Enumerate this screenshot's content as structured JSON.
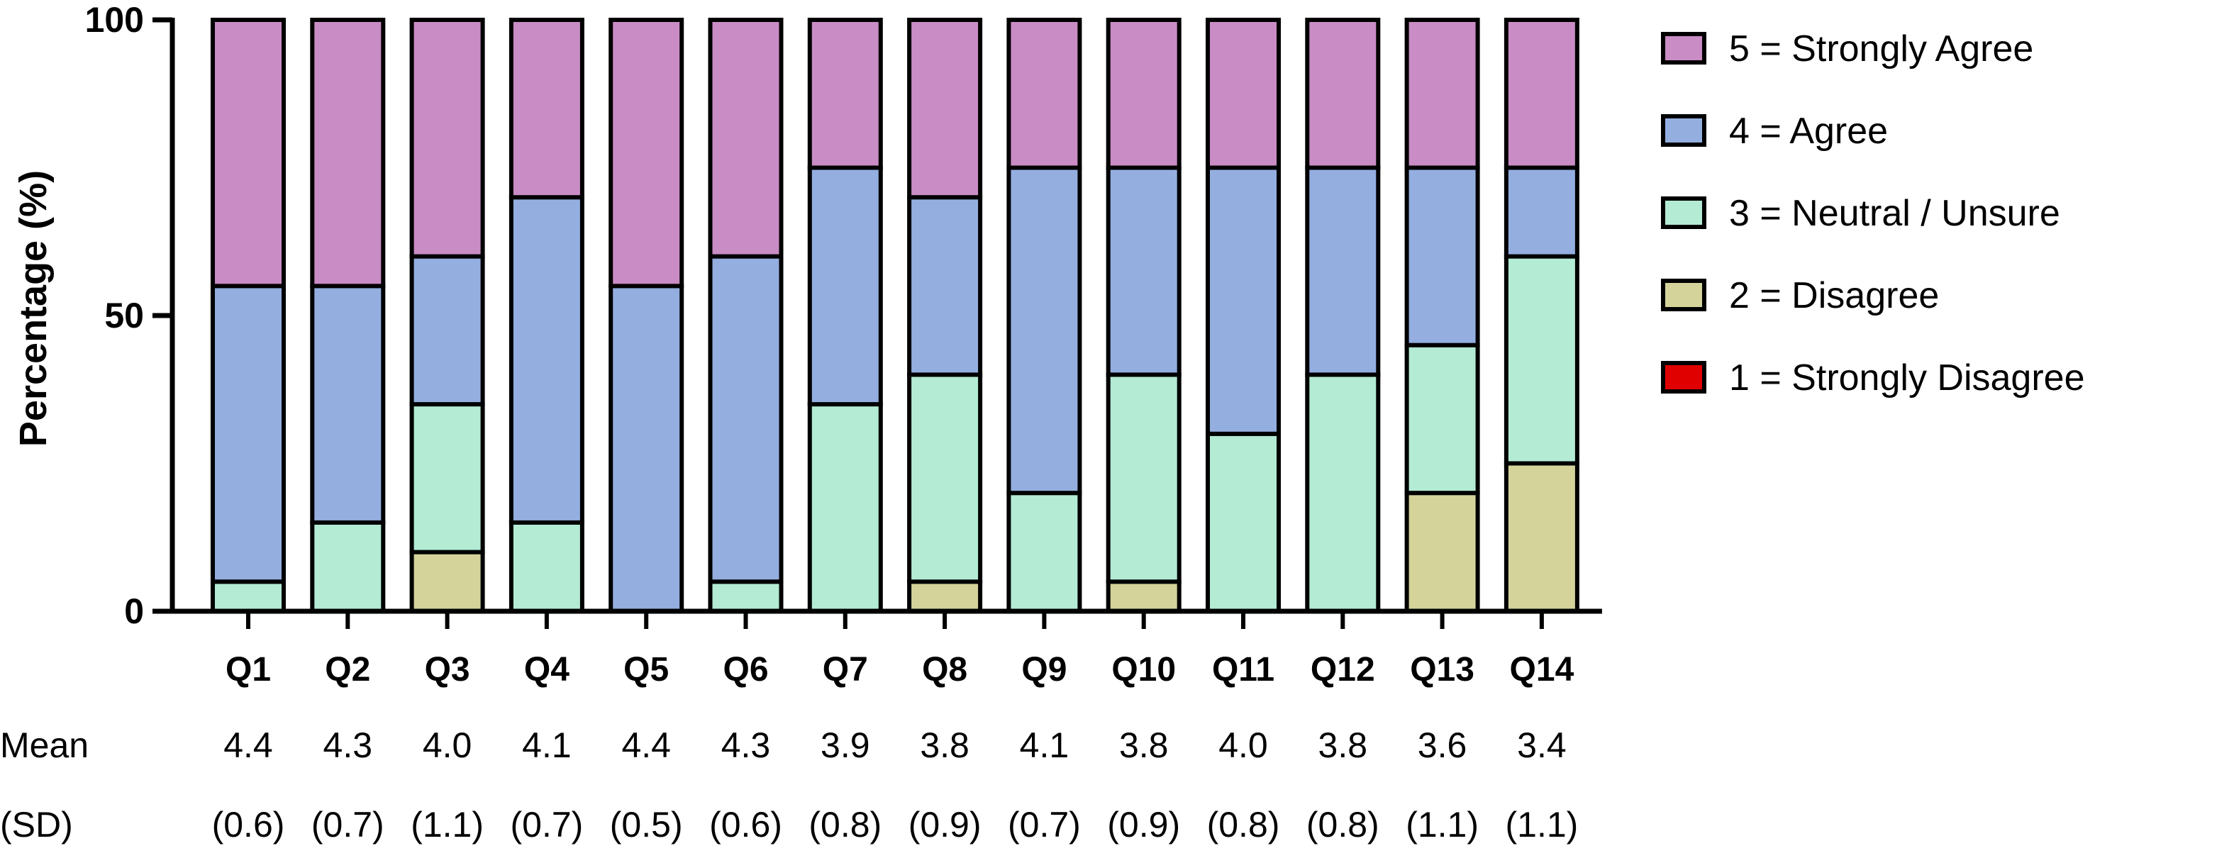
{
  "chart_data": {
    "type": "bar",
    "stacked": true,
    "ylabel": "Percentage (%)",
    "ylim": [
      0,
      100
    ],
    "yticks": [
      0,
      50,
      100
    ],
    "categories": [
      "Q1",
      "Q2",
      "Q3",
      "Q4",
      "Q5",
      "Q6",
      "Q7",
      "Q8",
      "Q9",
      "Q10",
      "Q11",
      "Q12",
      "Q13",
      "Q14"
    ],
    "series": [
      {
        "name": "1 = Strongly Disagree",
        "color": "#e00000",
        "values": [
          0,
          0,
          0,
          0,
          0,
          0,
          0,
          0,
          0,
          0,
          0,
          0,
          0,
          0
        ]
      },
      {
        "name": "2 = Disagree",
        "color": "#d4d39a",
        "values": [
          0,
          0,
          10,
          0,
          0,
          0,
          0,
          5,
          0,
          5,
          0,
          0,
          20,
          25
        ]
      },
      {
        "name": "3 = Neutral / Unsure",
        "color": "#b3ebd4",
        "values": [
          5,
          15,
          25,
          15,
          0,
          5,
          35,
          35,
          20,
          35,
          30,
          40,
          25,
          35
        ]
      },
      {
        "name": "4 = Agree",
        "color": "#94aee0",
        "values": [
          50,
          40,
          25,
          55,
          55,
          55,
          40,
          30,
          55,
          35,
          45,
          35,
          30,
          15
        ]
      },
      {
        "name": "5 = Strongly Agree",
        "color": "#c98cc4",
        "values": [
          45,
          45,
          40,
          30,
          45,
          40,
          25,
          30,
          25,
          25,
          25,
          25,
          25,
          25
        ]
      }
    ],
    "legend_order": [
      "5 = Strongly Agree",
      "4 = Agree",
      "3 = Neutral / Unsure",
      "2 = Disagree",
      "1 = Strongly Disagree"
    ],
    "legend_position": "right",
    "grid": false,
    "stats": {
      "mean_label": "Mean",
      "sd_label": "(SD)",
      "mean": [
        "4.4",
        "4.3",
        "4.0",
        "4.1",
        "4.4",
        "4.3",
        "3.9",
        "3.8",
        "4.1",
        "3.8",
        "4.0",
        "3.8",
        "3.6",
        "3.4"
      ],
      "sd": [
        "(0.6)",
        "(0.7)",
        "(1.1)",
        "(0.7)",
        "(0.5)",
        "(0.6)",
        "(0.8)",
        "(0.9)",
        "(0.7)",
        "(0.9)",
        "(0.8)",
        "(0.8)",
        "(1.1)",
        "(1.1)"
      ]
    }
  }
}
